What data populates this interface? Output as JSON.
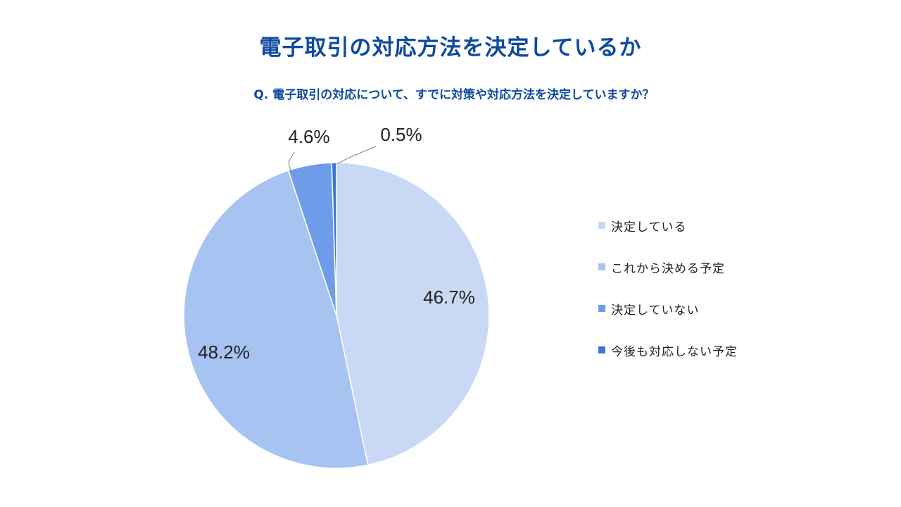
{
  "chart_data": {
    "type": "pie",
    "title": "電子取引の対応方法を決定しているか",
    "subtitle": "Q. 電子取引の対応について、すでに対策や対応方法を決定していますか？",
    "legend_position": "right",
    "slices": [
      {
        "label": "決定している",
        "value": 46.7,
        "display": "46.7%",
        "color": "#c9d9f5"
      },
      {
        "label": "これから決める予定",
        "value": 48.2,
        "display": "48.2%",
        "color": "#a7c3f1"
      },
      {
        "label": "決定していない",
        "value": 4.6,
        "display": "4.6%",
        "color": "#6e9ce8"
      },
      {
        "label": "今後も対応しない予定",
        "value": 0.5,
        "display": "0.5%",
        "color": "#3d74d6"
      }
    ]
  }
}
